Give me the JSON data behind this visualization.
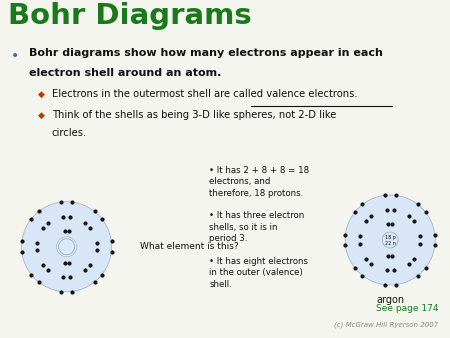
{
  "title": "Bohr Diagrams",
  "title_color": "#1a7a1a",
  "bg_color": "#f5f5f0",
  "bullet1_line1": "Bohr diagrams show how many electrons appear in each",
  "bullet1_line2": "electron shell around an atom.",
  "sub1": "Electrons in the outermost shell are called valence electrons.",
  "sub2_line1": "Think of the shells as being 3-D like spheres, not 2-D like",
  "sub2_line2": "circles.",
  "atom1_label": "What element is this?",
  "atom2_label": "argon",
  "nucleus2_lines": [
    "18 p",
    "22 n"
  ],
  "bullets_right": [
    "It has 2 + 8 + 8 = 18\nelectrons, and\ntherefore, 18 protons.",
    "It has three electron\nshells, so it is in\nperiod 3.",
    "It has eight electrons\nin the outer (valence)\nshell."
  ],
  "footer1": "See page 174",
  "footer2": "(c) McGraw Hill Ryerson 2007",
  "shell_color_outer": "#c0d4ee",
  "shell_color_mid": "#ccdaf2",
  "shell_color_inner": "#d8e6f8",
  "nucleus_color": "#deeaf8",
  "nucleus_color2": "#dce8f5",
  "electron_color": "#111111",
  "red_bullet": "#cc3300",
  "blue_bullet": "#4466bb"
}
